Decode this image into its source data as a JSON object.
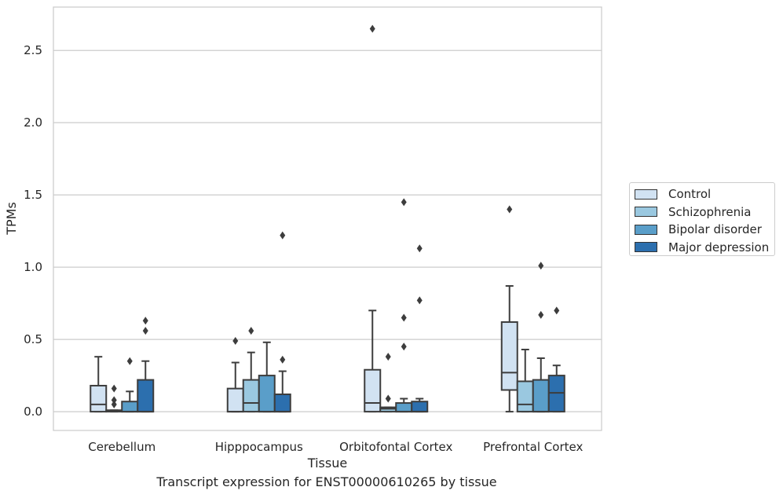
{
  "chart_data": {
    "type": "boxplot",
    "ylabel": "TPMs",
    "xlabel": "Tissue",
    "caption": "Transcript expression for ENST00000610265 by tissue",
    "ylim": [
      -0.13,
      2.8
    ],
    "yticks": [
      "0.0",
      "0.5",
      "1.0",
      "1.5",
      "2.0",
      "2.5"
    ],
    "ytick_values": [
      0.0,
      0.5,
      1.0,
      1.5,
      2.0,
      2.5
    ],
    "grid": "y",
    "legend_position": "right",
    "categories": [
      "Cerebellum",
      "Hipppocampus",
      "Orbitofontal Cortex",
      "Prefrontal Cortex"
    ],
    "series": [
      {
        "name": "Control",
        "color": "#d1e2f2",
        "boxes": [
          {
            "whislo": 0.0,
            "q1": 0.0,
            "med": 0.05,
            "q3": 0.18,
            "whishi": 0.38,
            "fliers": []
          },
          {
            "whislo": 0.0,
            "q1": 0.0,
            "med": 0.0,
            "q3": 0.16,
            "whishi": 0.34,
            "fliers": [
              0.49
            ]
          },
          {
            "whislo": 0.0,
            "q1": 0.0,
            "med": 0.06,
            "q3": 0.29,
            "whishi": 0.7,
            "fliers": [
              2.65
            ]
          },
          {
            "whislo": 0.0,
            "q1": 0.15,
            "med": 0.27,
            "q3": 0.62,
            "whishi": 0.87,
            "fliers": [
              1.4
            ]
          }
        ]
      },
      {
        "name": "Schizophrenia",
        "color": "#9ac8e0",
        "boxes": [
          {
            "whislo": 0.0,
            "q1": 0.0,
            "med": 0.005,
            "q3": 0.01,
            "whishi": 0.01,
            "fliers": [
              0.05,
              0.08,
              0.16
            ]
          },
          {
            "whislo": 0.0,
            "q1": 0.0,
            "med": 0.06,
            "q3": 0.22,
            "whishi": 0.41,
            "fliers": [
              0.56
            ]
          },
          {
            "whislo": 0.0,
            "q1": 0.0,
            "med": 0.02,
            "q3": 0.03,
            "whishi": 0.03,
            "fliers": [
              0.09,
              0.38
            ]
          },
          {
            "whislo": 0.0,
            "q1": 0.0,
            "med": 0.05,
            "q3": 0.21,
            "whishi": 0.43,
            "fliers": []
          }
        ]
      },
      {
        "name": "Bipolar disorder",
        "color": "#5a9ec9",
        "boxes": [
          {
            "whislo": 0.0,
            "q1": 0.0,
            "med": 0.0,
            "q3": 0.07,
            "whishi": 0.14,
            "fliers": [
              0.35
            ]
          },
          {
            "whislo": 0.0,
            "q1": 0.0,
            "med": 0.0,
            "q3": 0.25,
            "whishi": 0.48,
            "fliers": []
          },
          {
            "whislo": 0.0,
            "q1": 0.0,
            "med": 0.0,
            "q3": 0.06,
            "whishi": 0.09,
            "fliers": [
              0.45,
              0.65,
              1.45
            ]
          },
          {
            "whislo": 0.0,
            "q1": 0.0,
            "med": 0.0,
            "q3": 0.22,
            "whishi": 0.37,
            "fliers": [
              0.67,
              1.01
            ]
          }
        ]
      },
      {
        "name": "Major depression",
        "color": "#2c6fae",
        "boxes": [
          {
            "whislo": 0.0,
            "q1": 0.0,
            "med": 0.0,
            "q3": 0.22,
            "whishi": 0.35,
            "fliers": [
              0.56,
              0.63
            ]
          },
          {
            "whislo": 0.0,
            "q1": 0.0,
            "med": 0.0,
            "q3": 0.12,
            "whishi": 0.28,
            "fliers": [
              0.36,
              1.22
            ]
          },
          {
            "whislo": 0.0,
            "q1": 0.0,
            "med": 0.0,
            "q3": 0.07,
            "whishi": 0.09,
            "fliers": [
              0.77,
              1.13
            ]
          },
          {
            "whislo": 0.0,
            "q1": 0.0,
            "med": 0.13,
            "q3": 0.25,
            "whishi": 0.32,
            "fliers": [
              0.7
            ]
          }
        ]
      }
    ]
  }
}
